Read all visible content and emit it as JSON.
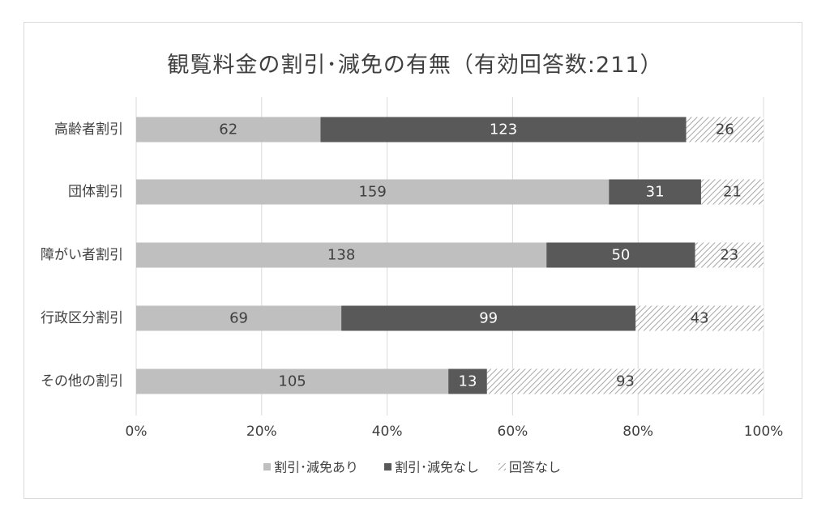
{
  "chart_data": {
    "type": "bar",
    "orientation": "horizontal",
    "stacked": "percent",
    "title": "観覧料金の割引･減免の有無（有効回答数:211）",
    "categories": [
      "高齢者割引",
      "団体割引",
      "障がい者割引",
      "行政区分割引",
      "その他の割引"
    ],
    "series": [
      {
        "name": "割引･減免あり",
        "values": [
          62,
          159,
          138,
          69,
          105
        ],
        "color": "#bfbfbf",
        "label_color": "#404040",
        "pattern": "solid"
      },
      {
        "name": "割引･減免なし",
        "values": [
          123,
          31,
          50,
          99,
          13
        ],
        "color": "#595959",
        "label_color": "#ffffff",
        "pattern": "solid"
      },
      {
        "name": "回答なし",
        "values": [
          26,
          21,
          23,
          43,
          93
        ],
        "color": "#a6a6a6",
        "label_color": "#404040",
        "pattern": "hatched"
      }
    ],
    "xticks": [
      "0%",
      "20%",
      "40%",
      "60%",
      "80%",
      "100%"
    ],
    "xlim": [
      0,
      100
    ],
    "grid": "vertical",
    "legend": "bottom"
  }
}
